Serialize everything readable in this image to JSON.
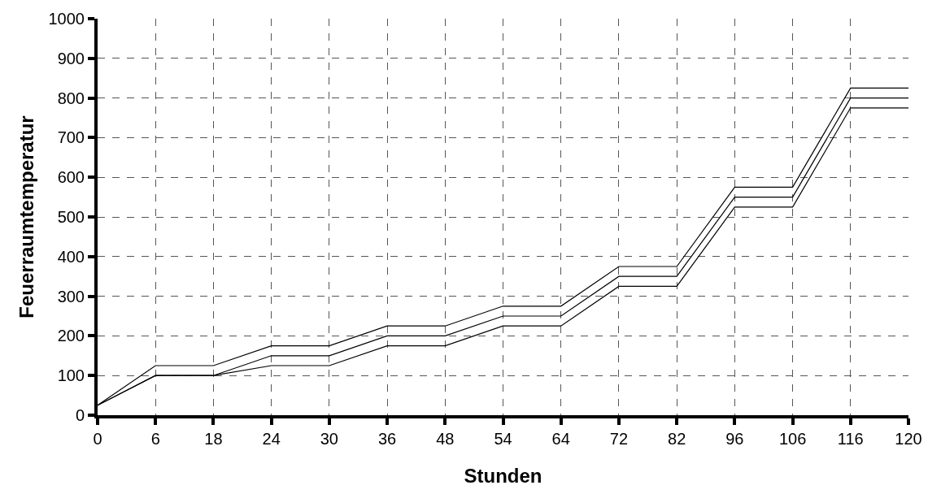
{
  "chart_data": {
    "type": "line",
    "xlabel": "Stunden",
    "ylabel": "Feuerraumtemperatur",
    "categories": [
      "0",
      "6",
      "18",
      "24",
      "30",
      "36",
      "48",
      "54",
      "64",
      "72",
      "82",
      "96",
      "106",
      "116",
      "120"
    ],
    "series": [
      {
        "color": "#000000",
        "values": [
          25,
          125,
          125,
          175,
          175,
          225,
          225,
          275,
          275,
          375,
          375,
          575,
          575,
          825,
          825
        ]
      },
      {
        "color": "#000000",
        "values": [
          25,
          100,
          100,
          150,
          150,
          200,
          200,
          250,
          250,
          350,
          350,
          550,
          550,
          800,
          800
        ]
      },
      {
        "color": "#000000",
        "values": [
          25,
          100,
          100,
          125,
          125,
          175,
          175,
          225,
          225,
          325,
          325,
          525,
          525,
          775,
          775
        ]
      }
    ],
    "ylim": [
      0,
      1000
    ],
    "yticks": [
      0,
      100,
      200,
      300,
      400,
      500,
      600,
      700,
      800,
      900,
      1000
    ],
    "grid": true,
    "marker": "none",
    "line_style": "solid"
  }
}
